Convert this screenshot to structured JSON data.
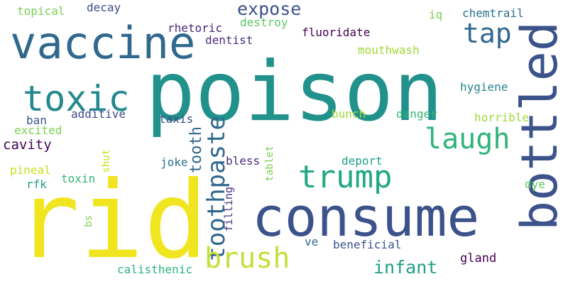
{
  "words": [
    {
      "key": "poison",
      "text": "poison",
      "color": "#21918c"
    },
    {
      "key": "rid",
      "text": "rid",
      "color": "#f0e51f"
    },
    {
      "key": "consume",
      "text": "consume",
      "color": "#3b528b"
    },
    {
      "key": "vaccine",
      "text": "vaccine",
      "color": "#31688e"
    },
    {
      "key": "bottled",
      "text": "bottled",
      "color": "#3b528b"
    },
    {
      "key": "toxic",
      "text": "toxic",
      "color": "#23898e"
    },
    {
      "key": "trump",
      "text": "trump",
      "color": "#22a884"
    },
    {
      "key": "toothpaste",
      "text": "toothpaste",
      "color": "#31688e"
    },
    {
      "key": "tap",
      "text": "tap",
      "color": "#31688e"
    },
    {
      "key": "laugh",
      "text": "laugh",
      "color": "#2fb47c"
    },
    {
      "key": "brush",
      "text": "brush",
      "color": "#c4df3c"
    },
    {
      "key": "infant",
      "text": "infant",
      "color": "#1f9e89"
    },
    {
      "key": "expose",
      "text": "expose",
      "color": "#3b528b"
    },
    {
      "key": "tooth",
      "text": "tooth",
      "color": "#31688e"
    },
    {
      "key": "cavity",
      "text": "cavity",
      "color": "#440154"
    },
    {
      "key": "hygiene",
      "text": "hygiene",
      "color": "#26828e"
    },
    {
      "key": "topical",
      "text": "topical",
      "color": "#7ad151"
    },
    {
      "key": "decay",
      "text": "decay",
      "color": "#3e4a89"
    },
    {
      "key": "rhetoric",
      "text": "rhetoric",
      "color": "#482677"
    },
    {
      "key": "destroy",
      "text": "destroy",
      "color": "#5ec962"
    },
    {
      "key": "iq",
      "text": "iq",
      "color": "#7ad151"
    },
    {
      "key": "chemtrail",
      "text": "chemtrail",
      "color": "#2c728e"
    },
    {
      "key": "fluoridate",
      "text": "fluoridate",
      "color": "#440154"
    },
    {
      "key": "dentist",
      "text": "dentist",
      "color": "#472d7b"
    },
    {
      "key": "mouthwash",
      "text": "mouthwash",
      "color": "#a0da39"
    },
    {
      "key": "additive",
      "text": "additive",
      "color": "#3e4989"
    },
    {
      "key": "ban",
      "text": "ban",
      "color": "#3b528b"
    },
    {
      "key": "excited",
      "text": "excited",
      "color": "#7ad151"
    },
    {
      "key": "taxis",
      "text": "taxis",
      "color": "#3e4a89"
    },
    {
      "key": "bunch",
      "text": "bunch",
      "color": "#a0da39"
    },
    {
      "key": "danger",
      "text": "danger",
      "color": "#35b779"
    },
    {
      "key": "horrible",
      "text": "horrible",
      "color": "#a0da39"
    },
    {
      "key": "pineal",
      "text": "pineal",
      "color": "#c8e020"
    },
    {
      "key": "shut",
      "text": "shut",
      "color": "#c8e020"
    },
    {
      "key": "toxin",
      "text": "toxin",
      "color": "#35b779"
    },
    {
      "key": "joke",
      "text": "joke",
      "color": "#2c728e"
    },
    {
      "key": "bless",
      "text": "bless",
      "color": "#482878"
    },
    {
      "key": "tablet",
      "text": "tablet",
      "color": "#7ad151"
    },
    {
      "key": "deport",
      "text": "deport",
      "color": "#1fa187"
    },
    {
      "key": "rfk",
      "text": "rfk",
      "color": "#20a386"
    },
    {
      "key": "dye",
      "text": "dye",
      "color": "#5ec962"
    },
    {
      "key": "filling",
      "text": "filling",
      "color": "#46337e"
    },
    {
      "key": "bs",
      "text": "bs",
      "color": "#7fd34e"
    },
    {
      "key": "ve",
      "text": "ve",
      "color": "#31688e"
    },
    {
      "key": "beneficial",
      "text": "beneficial",
      "color": "#3b528b"
    },
    {
      "key": "gland",
      "text": "gland",
      "color": "#440154"
    },
    {
      "key": "calisthenic",
      "text": "calisthenic",
      "color": "#2db27d"
    }
  ]
}
